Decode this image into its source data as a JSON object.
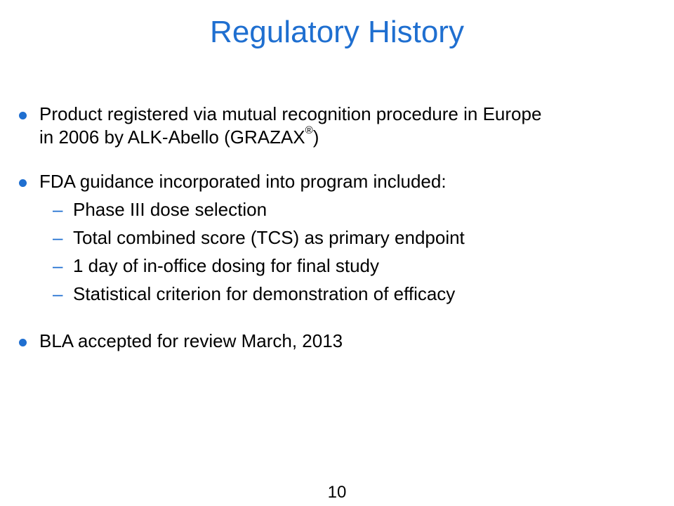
{
  "slide": {
    "title": "Regulatory History",
    "bullets": [
      {
        "line1": "Product registered via mutual recognition procedure in Europe",
        "line2_pre": "in 2006 by ALK-Abello (GRAZAX",
        "line2_sup": "®",
        "line2_post": ")"
      },
      {
        "text": "FDA guidance incorporated into program included:",
        "subitems": [
          "Phase III dose selection",
          "Total combined score (TCS) as primary endpoint",
          "1 day of in-office dosing for final study",
          "Statistical criterion for demonstration of efficacy"
        ]
      },
      {
        "text": "BLA accepted for review March, 2013"
      }
    ],
    "page_number": "10",
    "accent_color": "#1f6fd0",
    "bullet_icon": "filled-circle-bullet",
    "sub_bullet_icon": "en-dash"
  }
}
